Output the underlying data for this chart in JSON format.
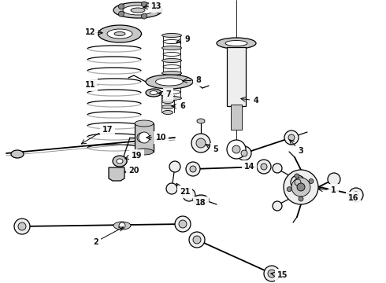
{
  "bg_color": "#ffffff",
  "line_color": "#000000",
  "fig_width": 4.9,
  "fig_height": 3.6,
  "dpi": 100,
  "lw_thin": 0.6,
  "lw_med": 0.9,
  "lw_thick": 1.3,
  "label_fontsize": 7.0,
  "label_fontsize_small": 6.5,
  "label_color": "#111111",
  "gray_fill": "#c8c8c8",
  "dark_fill": "#888888",
  "light_fill": "#eeeeee"
}
